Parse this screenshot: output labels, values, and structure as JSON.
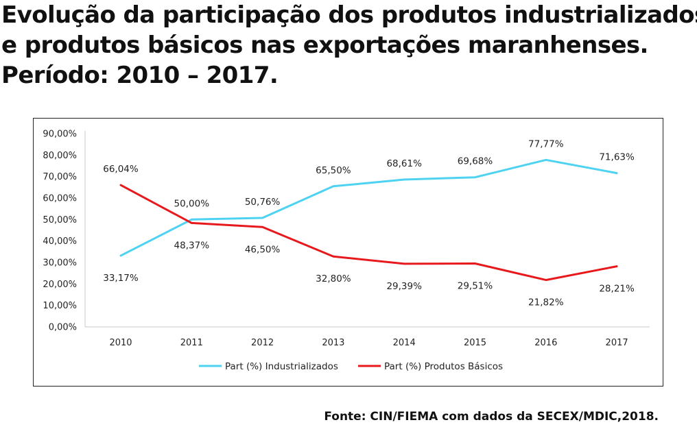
{
  "title": {
    "line1": "Evolução da participação dos produtos industrializados",
    "line2": "e produtos básicos nas exportações maranhenses.",
    "line3": "Período: 2010 – 2017."
  },
  "source": "Fonte: CIN/FIEMA com dados da SECEX/MDIC,2018.",
  "chart_data": {
    "type": "line",
    "title": "",
    "xlabel": "",
    "ylabel": "",
    "categories": [
      "2010",
      "2011",
      "2012",
      "2013",
      "2014",
      "2015",
      "2016",
      "2017"
    ],
    "ylim": [
      0,
      90
    ],
    "yticks": [
      0,
      10,
      20,
      30,
      40,
      50,
      60,
      70,
      80,
      90
    ],
    "ytick_labels": [
      "0,00%",
      "10,00%",
      "20,00%",
      "30,00%",
      "40,00%",
      "50,00%",
      "60,00%",
      "70,00%",
      "80,00%",
      "90,00%"
    ],
    "grid": false,
    "legend_position": "bottom",
    "series": [
      {
        "name": "Part (%) Industrializados",
        "color": "#4DD2F2",
        "values": [
          33.17,
          50.0,
          50.76,
          65.5,
          68.61,
          69.68,
          77.77,
          71.63
        ],
        "labels": [
          "33,17%",
          "50,00%",
          "50,76%",
          "65,50%",
          "68,61%",
          "69,68%",
          "77,77%",
          "71,63%"
        ]
      },
      {
        "name": "Part (%) Produtos Básicos",
        "color": "#E8191C",
        "values": [
          66.04,
          48.37,
          46.5,
          32.8,
          29.39,
          29.51,
          21.82,
          28.21
        ],
        "labels": [
          "66,04%",
          "48,37%",
          "46,50%",
          "32,80%",
          "29,39%",
          "29,51%",
          "21,82%",
          "28,21%"
        ]
      }
    ]
  }
}
